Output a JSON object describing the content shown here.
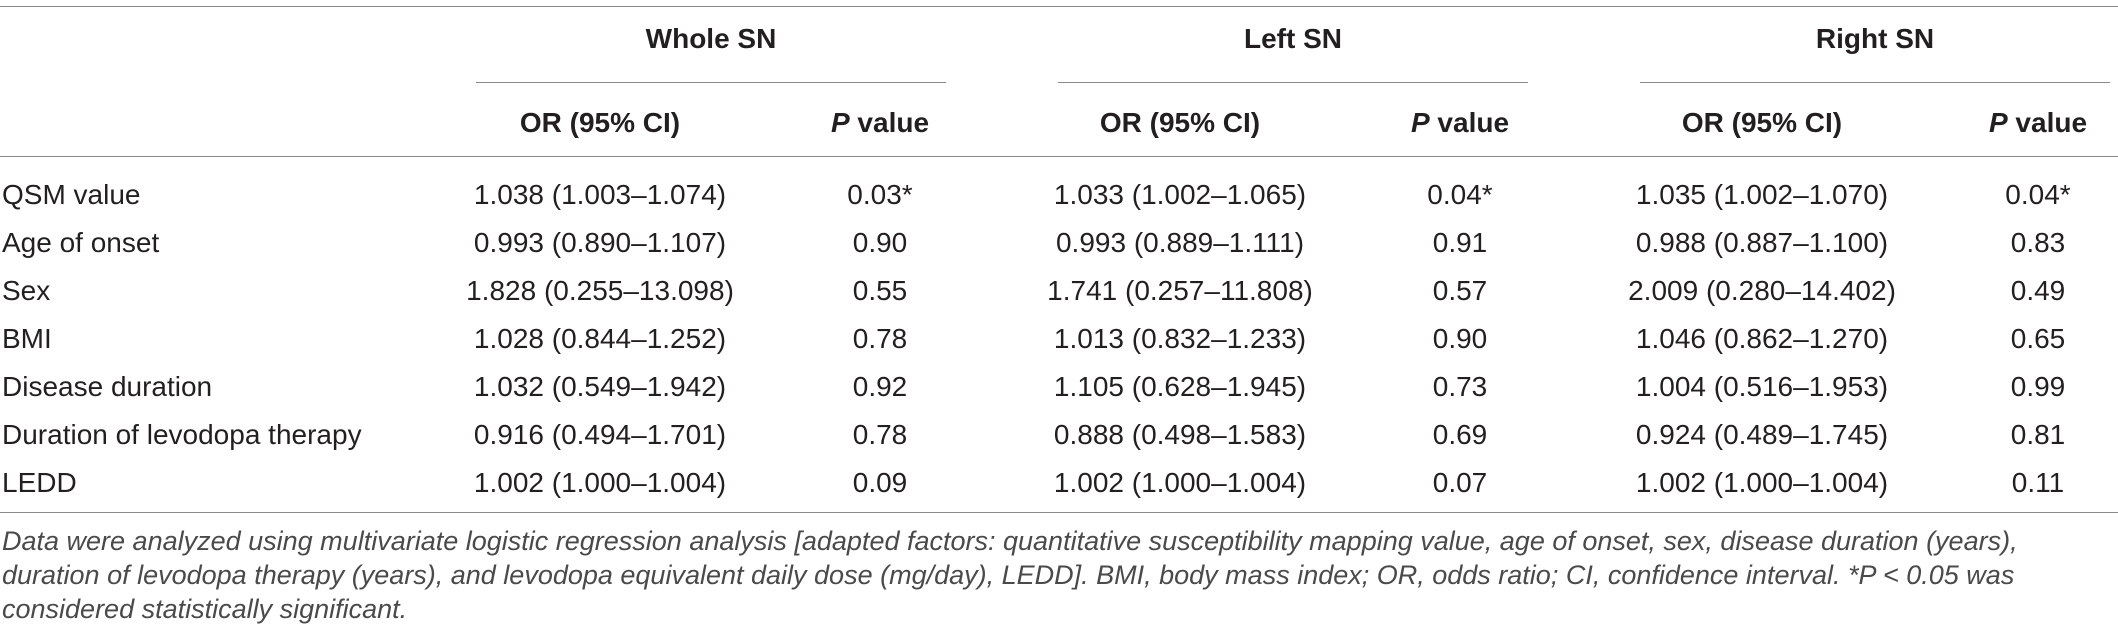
{
  "table": {
    "groups": [
      "Whole SN",
      "Left SN",
      "Right SN"
    ],
    "or_header": "OR (95% CI)",
    "p_header_italic": "P",
    "p_header_rest": " value",
    "rows": [
      {
        "label": "QSM value",
        "cells": [
          "1.038 (1.003–1.074)",
          "0.03*",
          "1.033 (1.002–1.065)",
          "0.04*",
          "1.035 (1.002–1.070)",
          "0.04*"
        ]
      },
      {
        "label": "Age of onset",
        "cells": [
          "0.993 (0.890–1.107)",
          "0.90",
          "0.993 (0.889–1.111)",
          "0.91",
          "0.988 (0.887–1.100)",
          "0.83"
        ]
      },
      {
        "label": "Sex",
        "cells": [
          "1.828 (0.255–13.098)",
          "0.55",
          "1.741 (0.257–11.808)",
          "0.57",
          "2.009 (0.280–14.402)",
          "0.49"
        ]
      },
      {
        "label": "BMI",
        "cells": [
          "1.028 (0.844–1.252)",
          "0.78",
          "1.013 (0.832–1.233)",
          "0.90",
          "1.046 (0.862–1.270)",
          "0.65"
        ]
      },
      {
        "label": "Disease duration",
        "cells": [
          "1.032 (0.549–1.942)",
          "0.92",
          "1.105 (0.628–1.945)",
          "0.73",
          "1.004 (0.516–1.953)",
          "0.99"
        ]
      },
      {
        "label": "Duration of levodopa therapy",
        "cells": [
          "0.916 (0.494–1.701)",
          "0.78",
          "0.888 (0.498–1.583)",
          "0.69",
          "0.924 (0.489–1.745)",
          "0.81"
        ]
      },
      {
        "label": "LEDD",
        "cells": [
          "1.002 (1.000–1.004)",
          "0.09",
          "1.002 (1.000–1.004)",
          "0.07",
          "1.002 (1.000–1.004)",
          "0.11"
        ]
      }
    ]
  },
  "footnote": "Data were analyzed using multivariate logistic regression analysis [adapted factors: quantitative susceptibility mapping value, age of onset, sex, disease duration (years), duration of levodopa therapy (years), and levodopa equivalent daily dose (mg/day), LEDD]. BMI, body mass index; OR, odds ratio; CI, confidence interval. *P < 0.05 was considered statistically significant."
}
